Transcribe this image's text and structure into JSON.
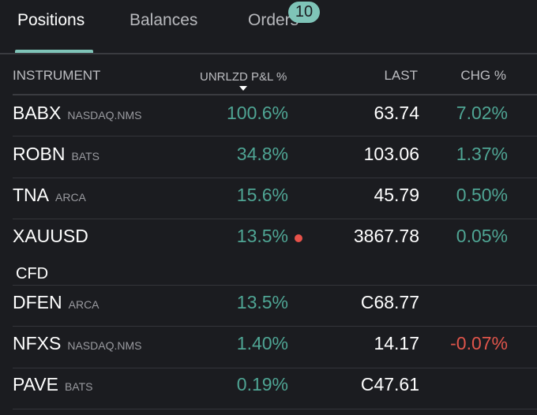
{
  "tabs": [
    {
      "label": "Positions",
      "active": true
    },
    {
      "label": "Balances"
    },
    {
      "label": "Orders",
      "badge": "10"
    }
  ],
  "columns": {
    "instrument": "INSTRUMENT",
    "pnl": "UNRLZD P&L %",
    "last": "LAST",
    "chg": "CHG %",
    "sorted_by": "UNRLZD P&L %",
    "sort": "descending"
  },
  "colors": {
    "positive": "#4fa594",
    "negative": "#e0554b",
    "accent": "#7fc4b8",
    "background": "#1b1c20"
  },
  "rows": [
    {
      "symbol": "BABX",
      "exchange": "NASDAQ.NMS",
      "pnl": "100.6%",
      "last": "63.74",
      "chg": "7.02%"
    },
    {
      "symbol": "ROBN",
      "exchange": "BATS",
      "pnl": "34.8%",
      "last": "103.06",
      "chg": "1.37%"
    },
    {
      "symbol": "TNA",
      "exchange": "ARCA",
      "pnl": "15.6%",
      "last": "45.79",
      "chg": "0.50%"
    },
    {
      "symbol": "XAUUSD",
      "exchange": "",
      "subtype": "CFD",
      "pnl": "13.5%",
      "last": "3867.78",
      "chg": "0.05%"
    },
    {
      "symbol": "DFEN",
      "exchange": "ARCA",
      "pnl": "13.5%",
      "last": "C68.77",
      "chg": ""
    },
    {
      "symbol": "NFXS",
      "exchange": "NASDAQ.NMS",
      "pnl": "1.40%",
      "last": "14.17",
      "chg": "-0.07%"
    },
    {
      "symbol": "PAVE",
      "exchange": "BATS",
      "pnl": "0.19%",
      "last": "C47.61",
      "chg": ""
    }
  ]
}
